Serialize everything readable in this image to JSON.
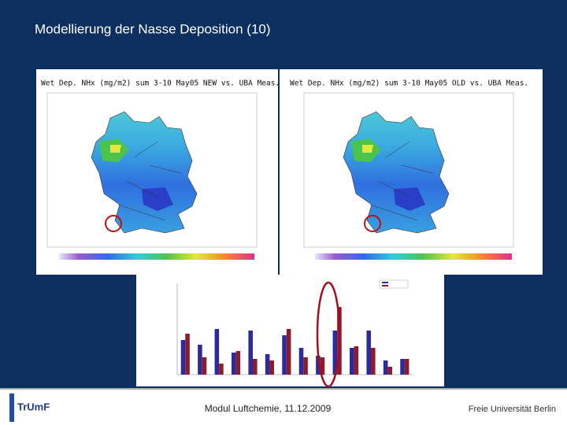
{
  "slide": {
    "title": "Modellierung der Nasse Deposition (10)",
    "maps": [
      {
        "title": "Wet Dep. NHx (mg/m2) sum 3-10 May05 NEW vs. UBA Meas."
      },
      {
        "title": "Wet Dep. NHx (mg/m2) sum 3-10 May05 OLD vs. UBA Meas."
      }
    ],
    "bar_chart": {
      "series": [
        {
          "color": "#2b2b9e",
          "values": [
            44,
            38,
            58,
            28,
            56,
            26,
            50,
            34,
            24,
            56,
            34,
            56,
            18,
            20
          ]
        },
        {
          "color": "#8c1c2c",
          "values": [
            52,
            22,
            14,
            30,
            20,
            18,
            58,
            22,
            22,
            86,
            36,
            34,
            10,
            20
          ]
        }
      ]
    },
    "footer": {
      "logo": "TrUmF",
      "text": "Modul Luftchemie, 11.12.2009",
      "university": "Freie Universität Berlin"
    }
  }
}
